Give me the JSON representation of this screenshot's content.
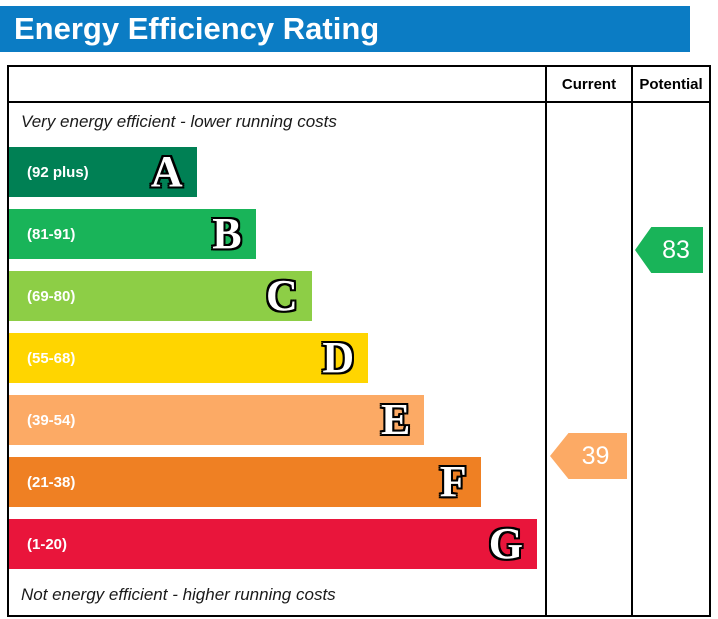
{
  "header": {
    "title": "Energy Efficiency Rating",
    "background": "#0b7cc4",
    "text_color": "#ffffff"
  },
  "chart_data": {
    "type": "bar",
    "title": "Energy Efficiency Rating",
    "columns": [
      "Current",
      "Potential"
    ],
    "top_caption": "Very energy efficient - lower running costs",
    "bottom_caption": "Not energy efficient - higher running costs",
    "bands": [
      {
        "letter": "A",
        "range": "(92 plus)",
        "min": 92,
        "max": 100,
        "color": "#008054",
        "width_pct": 35
      },
      {
        "letter": "B",
        "range": "(81-91)",
        "min": 81,
        "max": 91,
        "color": "#19b459",
        "width_pct": 46
      },
      {
        "letter": "C",
        "range": "(69-80)",
        "min": 69,
        "max": 80,
        "color": "#8dce46",
        "width_pct": 56.5
      },
      {
        "letter": "D",
        "range": "(55-68)",
        "min": 55,
        "max": 68,
        "color": "#ffd500",
        "width_pct": 67
      },
      {
        "letter": "E",
        "range": "(39-54)",
        "min": 39,
        "max": 54,
        "color": "#fcaa65",
        "width_pct": 77.5
      },
      {
        "letter": "F",
        "range": "(21-38)",
        "min": 21,
        "max": 38,
        "color": "#ef8023",
        "width_pct": 88
      },
      {
        "letter": "G",
        "range": "(1-20)",
        "min": 1,
        "max": 20,
        "color": "#e9153b",
        "width_pct": 98.5
      }
    ],
    "current": {
      "value": 39,
      "band": "E",
      "color": "#fcaa65",
      "column": "Current"
    },
    "potential": {
      "value": 83,
      "band": "B",
      "color": "#19b459",
      "column": "Potential"
    }
  }
}
